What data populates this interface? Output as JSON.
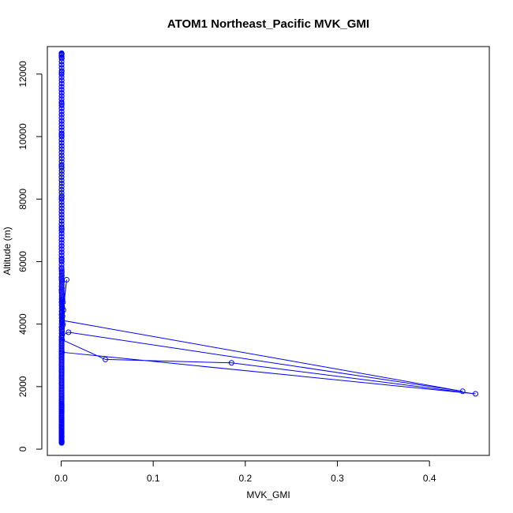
{
  "chart_data": {
    "type": "line",
    "title": "ATOM1 Northeast_Pacific MVK_GMI",
    "xlabel": "MVK_GMI",
    "ylabel": "Altitude (m)",
    "xlim": [
      -0.015,
      0.465
    ],
    "ylim": [
      -200,
      12880
    ],
    "x_ticks": [
      0,
      0.1,
      0.2,
      0.3,
      0.4
    ],
    "x_tick_labels": [
      "0.0",
      "0.1",
      "0.2",
      "0.3",
      "0.4"
    ],
    "y_ticks": [
      0,
      2000,
      4000,
      6000,
      8000,
      10000,
      12000
    ],
    "y_tick_labels": [
      "0",
      "2000",
      "4000",
      "6000",
      "8000",
      "10000",
      "12000"
    ],
    "grid": false,
    "marker": "open-circle",
    "series_color": "#0000ff",
    "series": [
      {
        "x": [
          0.0005,
          0.0006,
          0.0005,
          0.0004,
          0.0006,
          0.0005,
          0.0004,
          0.0005,
          0.0006,
          0.0005,
          0.0004,
          0.0005,
          0.0006,
          0.0005,
          0.0004,
          0.0005,
          0.0006,
          0.0005,
          0.0004,
          0.0005,
          0.0006,
          0.0005,
          0.0004,
          0.0005,
          0.0006,
          0.0005,
          0.0004,
          0.0005,
          0.0006,
          0.0005,
          0.0004,
          0.0005,
          0.0006,
          0.0005,
          0.0004,
          0.0005,
          0.0006,
          0.0005,
          0.0004,
          0.0005,
          0.0006,
          0.0005,
          0.0004,
          0.0005,
          0.0006,
          0.0005,
          0.0004,
          0.0005,
          0.0006,
          0.0005,
          0.0004,
          0.0005,
          0.0006,
          0.0005,
          0.0004,
          0.0005,
          0.0006,
          0.0005,
          0.0004,
          0.0005,
          0.0006,
          0.0005,
          0.0004,
          0.0005,
          0.0006,
          0.0005,
          0.0007,
          0.0006,
          0.0005,
          0.0008,
          0.0006,
          0.001,
          0.0007,
          0.0009,
          0.0006,
          0.0015,
          0.002,
          0.0008,
          0.0012,
          0.0009,
          0.0007,
          0.006,
          0.001,
          0.436,
          0.008,
          0.001,
          0.0015,
          0.002,
          0.0008,
          0.0012,
          0.001,
          0.0009,
          0.0015,
          0.001,
          0.0025,
          0.0012,
          0.0008,
          0.001,
          0.0007,
          0.0009,
          0.0006,
          0.0008,
          0.0007,
          0.0009,
          0.0006,
          0.0008,
          0.0007,
          0.0006,
          0.0005,
          0.0004,
          0.0005,
          0.0006,
          0.0005,
          0.0004,
          0.0005,
          0.0006,
          0.0005,
          0.0004,
          0.0005,
          0.0006,
          0.0005,
          0.0004,
          0.0005,
          0.0006,
          0.0005,
          0.0004,
          0.0005,
          0.0006,
          0.0005,
          0.0004,
          0.0005,
          0.0006,
          0.0005,
          0.0004,
          0.0005,
          0.0006,
          0.0005,
          0.0004,
          0.0005,
          0.0006,
          0.0005,
          0.0004,
          0.0005,
          0.0006,
          0.0005,
          0.0004,
          0.0005,
          0.0006,
          0.0005,
          0.0004,
          0.0005,
          0.0006,
          0.0005,
          0.0004,
          0.0005,
          0.0006,
          0.0005,
          0.0004,
          0.0005,
          0.0006,
          0.0005,
          0.0004,
          0.0005,
          0.0006,
          0.0005,
          0.0004,
          0.0005,
          0.0006,
          0.0005,
          0.0004,
          0.0005,
          0.0006,
          0.0005,
          0.0004,
          0.0005,
          0.0006,
          0.0005,
          0.0004,
          0.0005,
          0.0006,
          0.0005,
          0.0004,
          0.0005,
          0.0006,
          0.0005,
          0.0004,
          0.0005,
          0.0006,
          0.0005,
          0.0004,
          0.0005,
          0.0006,
          0.0005,
          0.0004,
          0.0005,
          0.0006,
          0.0005,
          0.0004,
          0.0005,
          0.0006,
          0.0005,
          0.0004,
          0.0005,
          0.0006,
          0.0005,
          0.0004,
          0.0005,
          0.0006,
          0.0005,
          0.0004,
          0.0005,
          0.0006,
          0.0005,
          0.0004,
          0.0005,
          0.0006,
          0.0005,
          0.0004,
          0.0005,
          0.0006,
          0.0005,
          0.0004,
          0.0005,
          0.0006,
          0.0005,
          0.0004,
          0.0005,
          0.0006,
          0.0005,
          0.0004,
          0.0005,
          0.0006,
          0.0005,
          0.0004,
          0.0005,
          0.0006,
          0.0005,
          0.0004,
          0.0005,
          0.0006,
          0.0005,
          0.0004,
          0.0005,
          0.0006,
          0.0005,
          0.0004,
          0.0005,
          0.0006,
          0.0005,
          0.0004,
          0.0005,
          0.0006,
          0.0005,
          0.0004,
          0.0005,
          0.0006,
          0.0005,
          0.0004,
          0.0005,
          0.0006,
          0.0005,
          0.0004,
          0.0005,
          0.0006,
          0.0005,
          0.0004,
          0.0005,
          0.0006,
          0.0005,
          0.0004,
          0.0005,
          0.0006,
          0.0005,
          0.0004,
          0.0005,
          0.0006,
          0.0005,
          0.0004,
          0.0005,
          0.0006,
          0.0005,
          0.0004,
          0.0005,
          0.0006,
          0.0005,
          0.0004,
          0.0005,
          0.0006,
          0.0005,
          0.0004,
          0.0005,
          0.0006,
          0.0005,
          0.0004,
          0.0005,
          0.0006,
          0.0005,
          0.0004,
          0.0005,
          0.0006,
          0.0005,
          0.0004,
          0.0005,
          0.0006,
          0.0005,
          0.0004,
          0.0005,
          0.0006,
          0.0005,
          0.0004,
          0.0005,
          0.0006,
          0.0005,
          0.0004,
          0.0005,
          0.0006,
          0.0005,
          0.0004,
          0.0005,
          0.0006,
          0.0005,
          0.0004,
          0.0005,
          0.0006,
          0.0005,
          0.0004,
          0.0005,
          0.0006,
          0.0005,
          0.0004,
          0.0005,
          0.0006,
          0.0005,
          0.0004,
          0.0005,
          0.0006,
          0.0005,
          0.0004,
          0.0005,
          0.0006,
          0.0005,
          0.0004,
          0.0005,
          0.0006,
          0.0005,
          0.0004,
          0.0005
        ],
        "y": [
          200,
          240,
          280,
          320,
          360,
          400,
          450,
          500,
          560,
          620,
          680,
          740,
          800,
          850,
          900,
          950,
          1000,
          1050,
          1100,
          1150,
          1200,
          1250,
          1300,
          1350,
          1400,
          1450,
          1500,
          1550,
          1600,
          1650,
          1700,
          1750,
          1800,
          1850,
          1900,
          1950,
          2000,
          2050,
          2100,
          2150,
          2200,
          2250,
          2300,
          2350,
          2400,
          2450,
          2500,
          2550,
          2600,
          2650,
          2700,
          2750,
          2800,
          2850,
          2900,
          2950,
          3000,
          3050,
          3100,
          3150,
          3200,
          3250,
          3300,
          3350,
          3400,
          3450,
          3500,
          3560,
          3600,
          3650,
          3700,
          3760,
          3800,
          3850,
          3900,
          3950,
          4000,
          4050,
          4100,
          4150,
          4200,
          5420,
          4120,
          1850,
          3740,
          3650,
          4800,
          4700,
          4600,
          4500,
          4400,
          4300,
          4250,
          4350,
          4450,
          4550,
          4650,
          4750,
          4850,
          4950,
          5050,
          5150,
          5250,
          5350,
          5450,
          5550,
          5650,
          5700,
          5760,
          5800,
          5900,
          6000,
          6050,
          6100,
          6200,
          6300,
          6400,
          6500,
          6600,
          6700,
          6800,
          6900,
          7000,
          7050,
          7100,
          7200,
          7300,
          7400,
          7500,
          7600,
          7700,
          7800,
          7900,
          8000,
          8050,
          8100,
          8200,
          8300,
          8400,
          8500,
          8600,
          8700,
          8800,
          8900,
          9000,
          9050,
          9100,
          9200,
          9300,
          9400,
          9500,
          9600,
          9700,
          9800,
          9900,
          10000,
          10050,
          10100,
          10200,
          10300,
          10400,
          10500,
          10600,
          10700,
          10800,
          10900,
          11000,
          11050,
          11100,
          11200,
          11300,
          11400,
          11500,
          11600,
          11700,
          11800,
          11900,
          12000,
          12050,
          12100,
          12200,
          12300,
          12400,
          12500,
          12550,
          12600,
          12620,
          12640,
          12650,
          12660,
          12670,
          12650,
          12630,
          12600,
          12550,
          12500,
          12400,
          12300,
          12200,
          12100,
          12000,
          11900,
          11800,
          11700,
          11600,
          11500,
          11400,
          11300,
          11200,
          11100,
          11000,
          10900,
          10800,
          10700,
          10600,
          10500,
          10400,
          10300,
          10200,
          10100,
          10000,
          9900,
          9800,
          9700,
          9600,
          9500,
          9400,
          9300,
          9200,
          9100,
          9000,
          8900,
          8800,
          8700,
          8600,
          8500,
          8400,
          8300,
          8200,
          8100,
          8000,
          7900,
          7800,
          7700,
          7600,
          7500,
          7400,
          7300,
          7200,
          7100,
          7000,
          6900,
          6800,
          6700,
          6600,
          6500,
          6400,
          6300,
          6200,
          6100,
          6000,
          5900,
          5800,
          5700,
          5600,
          5500,
          5400,
          5300,
          5200,
          5100,
          5000,
          4900,
          4800,
          4700,
          4600,
          4500,
          4400,
          4300,
          4200,
          4100,
          4000,
          3900,
          3800,
          3700,
          3600,
          3500,
          3400,
          3300,
          3200,
          3100,
          3000,
          2900,
          2800,
          2700,
          2600,
          2500,
          2400,
          2300,
          2200,
          2100,
          2000,
          1900,
          1800,
          1700,
          1600,
          1500,
          1400,
          1300,
          1200,
          1100,
          1000,
          900,
          800,
          700,
          600,
          500,
          400,
          300,
          250,
          220,
          200,
          210,
          230,
          260,
          290,
          330,
          370,
          420,
          480,
          540,
          600,
          660,
          720,
          780,
          840,
          900,
          960,
          1020,
          1080,
          1140,
          1200,
          1260,
          1320,
          1380,
          1440,
          1500,
          1560
        ]
      },
      {
        "x": [
          0.001,
          0.048,
          0.185,
          0.45,
          0.001
        ],
        "y": [
          3500,
          2870,
          2760,
          1770,
          3100
        ]
      }
    ]
  }
}
